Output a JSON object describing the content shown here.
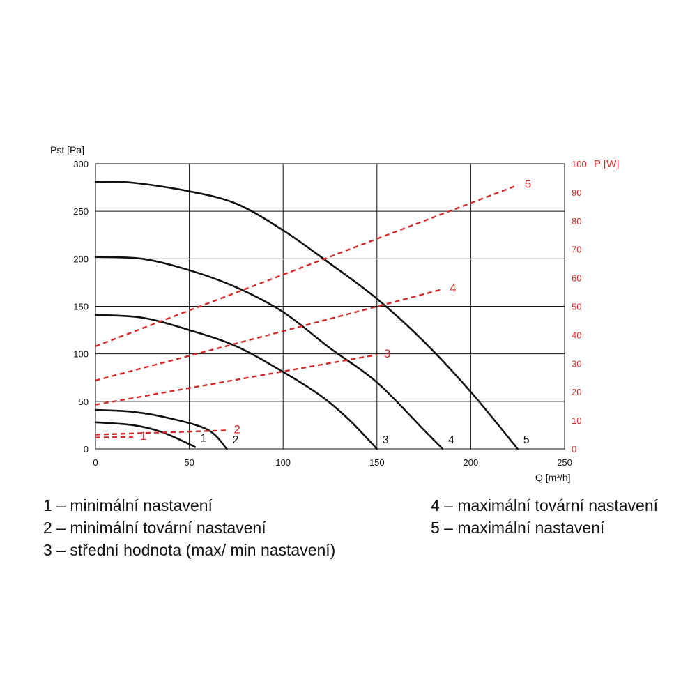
{
  "chart_data": {
    "type": "line",
    "xlabel": "Q [m³/h]",
    "ylabel": "Pst [Pa]",
    "y2label": "P [W]",
    "xlim": [
      0,
      250
    ],
    "ylim": [
      0,
      300
    ],
    "y2lim": [
      0,
      100
    ],
    "x_ticks": [
      "0",
      "50",
      "100",
      "150",
      "200",
      "250"
    ],
    "y_ticks": [
      "0",
      "50",
      "100",
      "150",
      "200",
      "250",
      "300"
    ],
    "y2_ticks": [
      "0",
      "10",
      "20",
      "30",
      "40",
      "50",
      "60",
      "70",
      "80",
      "90",
      "100"
    ],
    "grid": true,
    "colors": {
      "pressure": "#111111",
      "power": "#d42a2a"
    },
    "pressure_series": [
      {
        "label": "1",
        "x": [
          0,
          20,
          35,
          50,
          53
        ],
        "y": [
          28,
          25,
          18,
          5,
          2
        ]
      },
      {
        "label": "2",
        "x": [
          0,
          20,
          40,
          60,
          70
        ],
        "y": [
          41,
          39,
          32,
          20,
          0
        ]
      },
      {
        "label": "3",
        "x": [
          0,
          25,
          50,
          75,
          100,
          120,
          135,
          150
        ],
        "y": [
          141,
          138,
          125,
          108,
          81,
          56,
          31,
          0
        ]
      },
      {
        "label": "4",
        "x": [
          0,
          25,
          50,
          75,
          100,
          125,
          150,
          175,
          185
        ],
        "y": [
          202,
          200,
          188,
          170,
          144,
          106,
          70,
          20,
          0
        ]
      },
      {
        "label": "5",
        "x": [
          0,
          20,
          50,
          75,
          100,
          125,
          150,
          175,
          200,
          225
        ],
        "y": [
          281,
          280,
          271,
          258,
          230,
          195,
          158,
          113,
          60,
          0
        ]
      }
    ],
    "power_series": [
      {
        "label": "1",
        "x": [
          0,
          20
        ],
        "y": [
          4,
          4.2
        ]
      },
      {
        "label": "2",
        "x": [
          0,
          70
        ],
        "y": [
          5,
          6.5
        ]
      },
      {
        "label": "3",
        "x": [
          0,
          150
        ],
        "y": [
          15.5,
          33
        ]
      },
      {
        "label": "4",
        "x": [
          0,
          185
        ],
        "y": [
          24,
          56
        ]
      },
      {
        "label": "5",
        "x": [
          0,
          225
        ],
        "y": [
          36,
          92.5
        ]
      }
    ]
  },
  "legend": {
    "item1": "1 – minimální nastavení",
    "item2": "2 – minimální tovární nastavení",
    "item3": "3 – střední hodnota (max/ min nastavení)",
    "item4": "4 – maximální tovární nastavení",
    "item5": "5 – maximální nastavení"
  }
}
